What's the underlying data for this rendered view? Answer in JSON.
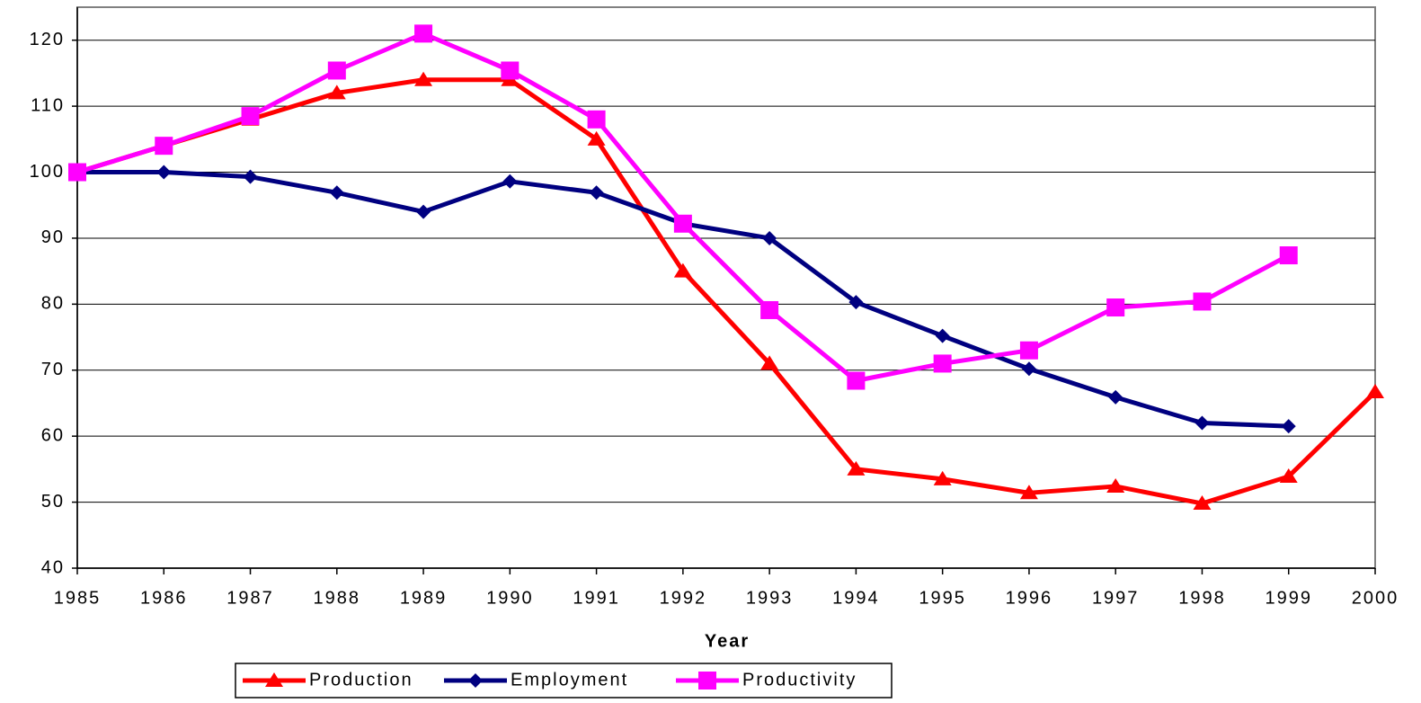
{
  "chart_data": {
    "type": "line",
    "x_label": "Year",
    "x": [
      1985,
      1986,
      1987,
      1988,
      1989,
      1990,
      1991,
      1992,
      1993,
      1994,
      1995,
      1996,
      1997,
      1998,
      1999,
      2000
    ],
    "xlim": [
      1985,
      2000
    ],
    "xticks": [
      1985,
      1986,
      1987,
      1988,
      1989,
      1990,
      1991,
      1992,
      1993,
      1994,
      1995,
      1996,
      1997,
      1998,
      1999,
      2000
    ],
    "ylim": [
      40,
      125
    ],
    "yticks": [
      40,
      50,
      60,
      70,
      80,
      90,
      100,
      110,
      120
    ],
    "grid": true,
    "legend": "bottom",
    "series": [
      {
        "name": "Production",
        "color": "#ff0000",
        "marker": "triangle",
        "values": [
          100,
          104,
          108,
          112,
          114,
          114,
          105,
          85,
          71,
          55,
          53.5,
          51.4,
          52.4,
          49.8,
          53.9,
          66.7
        ]
      },
      {
        "name": "Employment",
        "color": "#000080",
        "marker": "diamond",
        "values": [
          100,
          100,
          99.3,
          96.9,
          94,
          98.6,
          96.9,
          92.2,
          90,
          80.3,
          75.2,
          70.2,
          65.9,
          62,
          61.5,
          null
        ]
      },
      {
        "name": "Productivity",
        "color": "#ff00ff",
        "marker": "square",
        "values": [
          100,
          104,
          108.5,
          115.4,
          121,
          115.4,
          108,
          92.2,
          79.1,
          68.4,
          71,
          73,
          79.5,
          80.4,
          87.4,
          null
        ]
      }
    ]
  }
}
